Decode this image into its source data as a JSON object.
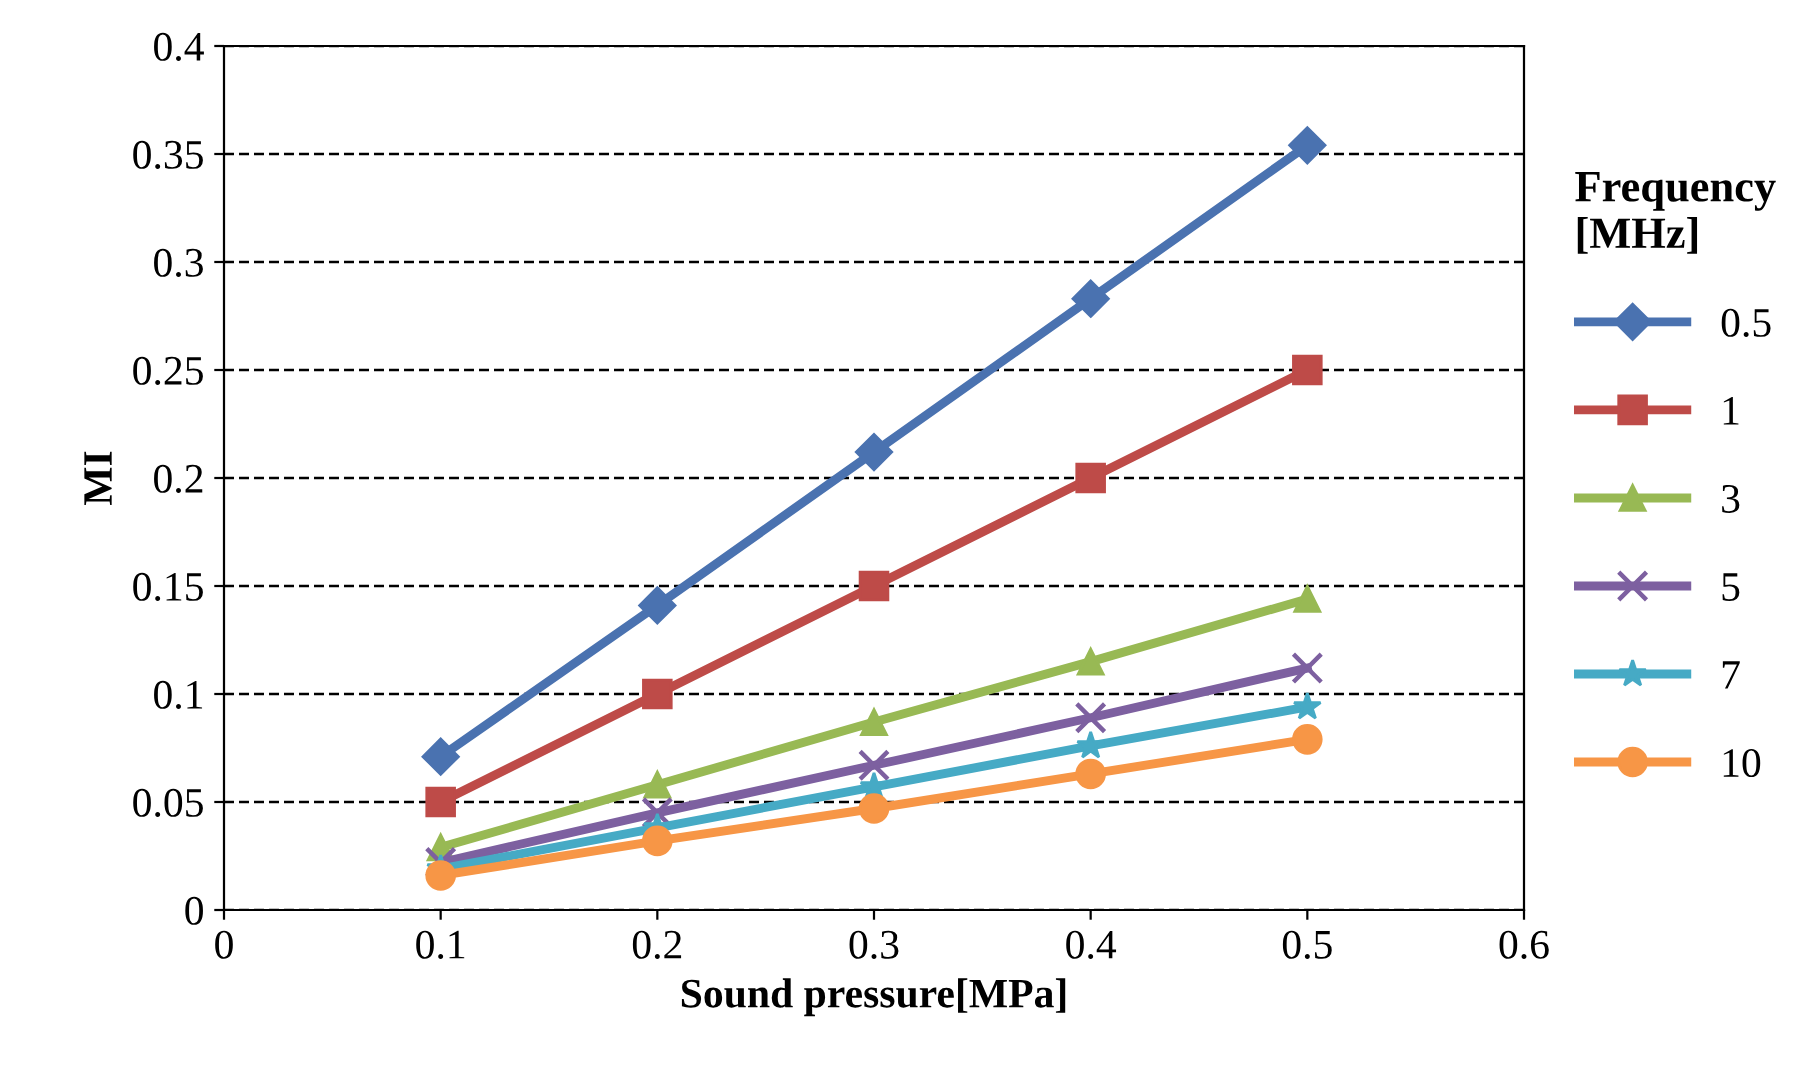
{
  "chart_data": {
    "type": "line",
    "xlabel": "Sound pressure[MPa]",
    "ylabel": "MI",
    "legend_title": "Frequency\n[MHz]",
    "x": [
      0.1,
      0.2,
      0.3,
      0.4,
      0.5
    ],
    "series": [
      {
        "name": "0.5",
        "color": "#4a72b0",
        "marker": "diamond",
        "values": [
          0.071,
          0.141,
          0.212,
          0.283,
          0.354
        ]
      },
      {
        "name": "1",
        "color": "#be4b48",
        "marker": "square",
        "values": [
          0.05,
          0.1,
          0.15,
          0.2,
          0.25
        ]
      },
      {
        "name": "3",
        "color": "#98b954",
        "marker": "triangle",
        "values": [
          0.029,
          0.058,
          0.087,
          0.115,
          0.144
        ]
      },
      {
        "name": "5",
        "color": "#7d60a0",
        "marker": "cross",
        "values": [
          0.022,
          0.045,
          0.067,
          0.089,
          0.112
        ]
      },
      {
        "name": "7",
        "color": "#46aac5",
        "marker": "star",
        "values": [
          0.019,
          0.038,
          0.057,
          0.076,
          0.094
        ]
      },
      {
        "name": "10",
        "color": "#f79646",
        "marker": "circle",
        "values": [
          0.016,
          0.032,
          0.047,
          0.063,
          0.079
        ]
      }
    ],
    "xlim": [
      0,
      0.6
    ],
    "xticks": [
      0,
      0.1,
      0.2,
      0.3,
      0.4,
      0.5,
      0.6
    ],
    "ylim": [
      0,
      0.4
    ],
    "yticks": [
      0,
      0.05,
      0.1,
      0.15,
      0.2,
      0.25,
      0.3,
      0.35,
      0.4
    ],
    "grid": "y",
    "legend": "right",
    "line_style": "solid"
  }
}
